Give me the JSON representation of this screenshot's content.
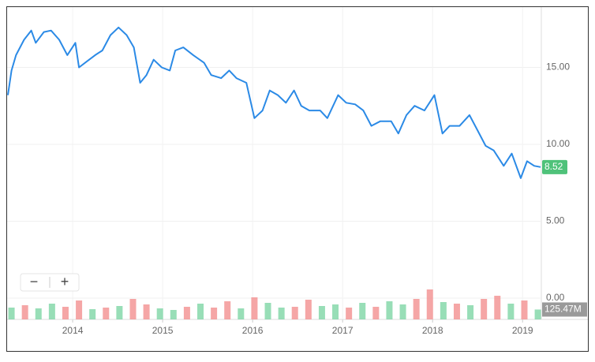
{
  "chart_data": {
    "type": "line",
    "series": [
      {
        "color": "#2b8ae6",
        "x": [
          2013.28,
          2013.32,
          2013.37,
          2013.46,
          2013.54,
          2013.59,
          2013.68,
          2013.76,
          2013.85,
          2013.94,
          2014.03,
          2014.07,
          2014.16,
          2014.25,
          2014.33,
          2014.42,
          2014.51,
          2014.6,
          2014.68,
          2014.75,
          2014.82,
          2014.9,
          2014.99,
          2015.08,
          2015.14,
          2015.23,
          2015.34,
          2015.46,
          2015.54,
          2015.65,
          2015.74,
          2015.82,
          2015.93,
          2016.02,
          2016.11,
          2016.19,
          2016.28,
          2016.37,
          2016.46,
          2016.54,
          2016.63,
          2016.75,
          2016.83,
          2016.95,
          2017.04,
          2017.14,
          2017.23,
          2017.32,
          2017.42,
          2017.54,
          2017.62,
          2017.71,
          2017.8,
          2017.91,
          2018.02,
          2018.11,
          2018.19,
          2018.3,
          2018.41,
          2018.5,
          2018.59,
          2018.68,
          2018.79,
          2018.88,
          2018.98,
          2019.05,
          2019.13,
          2019.2
        ],
        "values": [
          13.2,
          14.8,
          15.8,
          16.8,
          17.4,
          16.6,
          17.3,
          17.4,
          16.8,
          15.8,
          16.6,
          15.0,
          15.4,
          15.8,
          16.1,
          17.1,
          17.6,
          17.1,
          16.3,
          14.0,
          14.5,
          15.5,
          15.0,
          14.8,
          16.1,
          16.3,
          15.8,
          15.3,
          14.5,
          14.3,
          14.8,
          14.3,
          14.0,
          11.7,
          12.2,
          13.5,
          13.2,
          12.7,
          13.5,
          12.5,
          12.2,
          12.2,
          11.7,
          13.2,
          12.7,
          12.6,
          12.2,
          11.2,
          11.5,
          11.5,
          10.7,
          11.9,
          12.5,
          12.2,
          13.2,
          10.7,
          11.2,
          11.2,
          11.9,
          10.9,
          9.9,
          9.6,
          8.6,
          9.4,
          7.8,
          8.9,
          8.6,
          8.52
        ]
      }
    ],
    "volume": {
      "x": [
        2013.32,
        2013.47,
        2013.62,
        2013.77,
        2013.92,
        2014.07,
        2014.22,
        2014.37,
        2014.52,
        2014.67,
        2014.82,
        2014.97,
        2015.12,
        2015.27,
        2015.42,
        2015.57,
        2015.72,
        2015.87,
        2016.02,
        2016.17,
        2016.32,
        2016.47,
        2016.62,
        2016.77,
        2016.92,
        2017.07,
        2017.22,
        2017.37,
        2017.52,
        2017.67,
        2017.82,
        2017.97,
        2018.12,
        2018.27,
        2018.42,
        2018.57,
        2018.72,
        2018.87,
        2019.02,
        2019.17
      ],
      "values": [
        150,
        180,
        140,
        200,
        160,
        240,
        130,
        150,
        170,
        260,
        190,
        140,
        120,
        160,
        200,
        150,
        230,
        140,
        280,
        210,
        150,
        160,
        250,
        170,
        190,
        150,
        210,
        160,
        230,
        190,
        260,
        380,
        220,
        200,
        180,
        260,
        300,
        200,
        240,
        125.47
      ],
      "value_labels": [
        null,
        null,
        null,
        null,
        null,
        null,
        null,
        null,
        null,
        null,
        null,
        null,
        null,
        null,
        null,
        null,
        null,
        null,
        null,
        null,
        null,
        null,
        null,
        null,
        null,
        null,
        null,
        null,
        null,
        null,
        null,
        null,
        null,
        null,
        null,
        null,
        null,
        null,
        null,
        "125.47M"
      ],
      "colors": [
        "#7ed6a5",
        "#f29090",
        "#7ed6a5",
        "#7ed6a5",
        "#f29090",
        "#f29090",
        "#7ed6a5",
        "#f29090",
        "#7ed6a5",
        "#f29090",
        "#f29090",
        "#7ed6a5",
        "#7ed6a5",
        "#f29090",
        "#7ed6a5",
        "#f29090",
        "#f29090",
        "#7ed6a5",
        "#f29090",
        "#7ed6a5",
        "#7ed6a5",
        "#f29090",
        "#f29090",
        "#7ed6a5",
        "#7ed6a5",
        "#f29090",
        "#7ed6a5",
        "#f29090",
        "#7ed6a5",
        "#7ed6a5",
        "#f29090",
        "#f29090",
        "#7ed6a5",
        "#f29090",
        "#7ed6a5",
        "#f29090",
        "#f29090",
        "#7ed6a5",
        "#f29090",
        "#7ed6a5"
      ],
      "ylim": [
        0,
        500
      ]
    },
    "xlim": [
      2013.28,
      2019.2
    ],
    "xticks": [
      2014,
      2015,
      2016,
      2017,
      2018,
      2019
    ],
    "ylim": [
      0,
      18.87
    ],
    "yticks": [
      {
        "value": 0,
        "label": "0.00"
      },
      {
        "value": 5,
        "label": "5.00"
      },
      {
        "value": 10,
        "label": "10.00"
      },
      {
        "value": 15,
        "label": "15.00"
      }
    ],
    "grid": true,
    "last_value_color": "#4fc27a"
  },
  "controls": [
    "−",
    "+"
  ]
}
